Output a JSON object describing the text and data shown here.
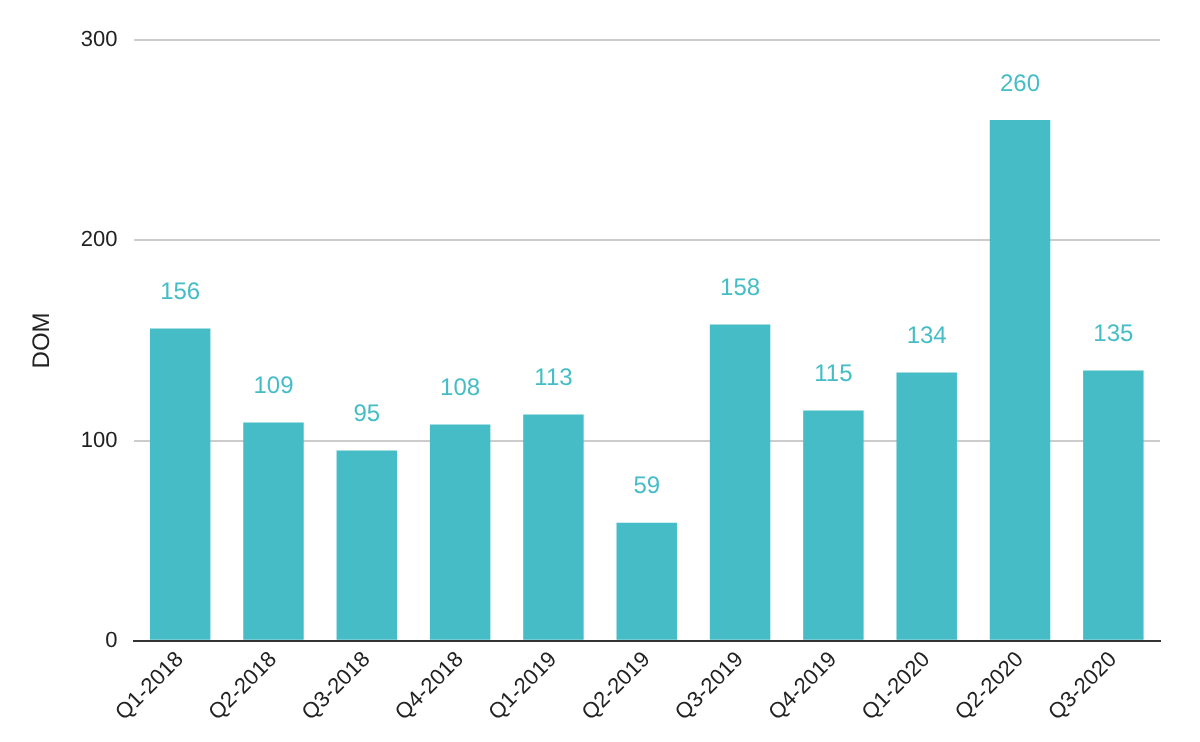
{
  "chart_data": {
    "type": "bar",
    "ylabel": "DOM",
    "categories": [
      "Q1-2018",
      "Q2-2018",
      "Q3-2018",
      "Q4-2018",
      "Q1-2019",
      "Q2-2019",
      "Q3-2019",
      "Q4-2019",
      "Q1-2020",
      "Q2-2020",
      "Q3-2020"
    ],
    "values": [
      156,
      109,
      95,
      108,
      113,
      59,
      158,
      115,
      134,
      260,
      135
    ],
    "color": "#46bdc6",
    "ylim": [
      0,
      300
    ],
    "yticks": [
      0,
      100,
      200,
      300
    ],
    "grid": "y",
    "data_labels": true
  }
}
